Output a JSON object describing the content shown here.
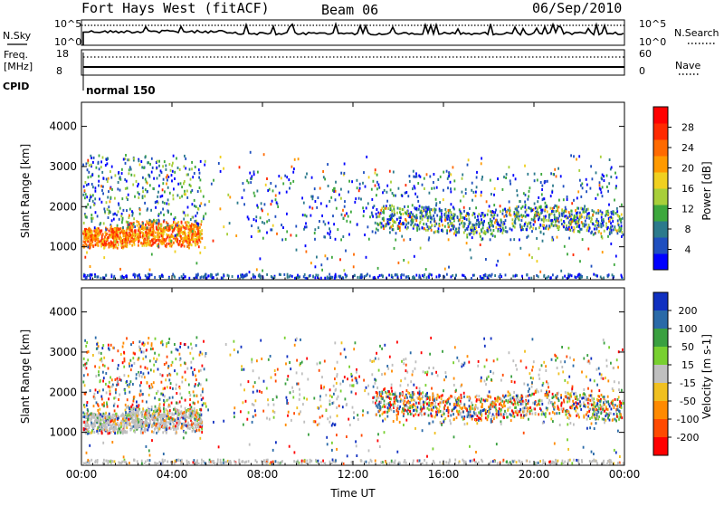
{
  "header": {
    "station": "Fort Hays West (fitACF)",
    "beam": "Beam 06",
    "date": "06/Sep/2010"
  },
  "status_strip": {
    "nsky_label": "N.Sky",
    "nsearch_label": "N.Search",
    "noise_tick_top": "10^5",
    "noise_tick_bottom": "10^0",
    "freq_label_1": "Freq.",
    "freq_label_2": "[MHz]",
    "freq_tick_top": "18",
    "freq_tick_bottom": "8",
    "nave_label": "Nave",
    "nave_tick_top": "60",
    "nave_tick_bottom": "0",
    "cpid_label": "CPID",
    "cpid_value": "normal 150"
  },
  "chart_data": [
    {
      "type": "heatmap",
      "title": "",
      "ylabel": "Slant Range [km]",
      "xlabel": "",
      "ylim": [
        180,
        4600
      ],
      "yticks": [
        "1000",
        "2000",
        "3000",
        "4000"
      ],
      "xticks": [
        "00:00",
        "04:00",
        "08:00",
        "12:00",
        "16:00",
        "20:00",
        "00:00"
      ],
      "colorbar": {
        "label": "Power [dB]",
        "ticks": [
          "4",
          "8",
          "12",
          "16",
          "20",
          "24",
          "28"
        ],
        "colors": [
          "#0000ff",
          "#1f4fbf",
          "#2c7a8c",
          "#3da83d",
          "#a8cf3a",
          "#f0d020",
          "#ff9a00",
          "#ff6a00",
          "#ff2a00",
          "#ff0000"
        ]
      }
    },
    {
      "type": "heatmap",
      "title": "",
      "ylabel": "Slant Range [km]",
      "xlabel": "Time UT",
      "ylim": [
        180,
        4600
      ],
      "yticks": [
        "1000",
        "2000",
        "3000",
        "4000"
      ],
      "xticks": [
        "00:00",
        "04:00",
        "08:00",
        "12:00",
        "16:00",
        "20:00",
        "00:00"
      ],
      "colorbar": {
        "label": "Velocity [m s-1]",
        "ticks": [
          "200",
          "100",
          "50",
          "15",
          "-15",
          "-50",
          "-100",
          "-200"
        ],
        "colors": [
          "#1030c0",
          "#2a6aa8",
          "#3aa040",
          "#78d030",
          "#bfbfbf",
          "#f0c020",
          "#ff8a00",
          "#ff4a00",
          "#ff0000"
        ]
      }
    }
  ]
}
